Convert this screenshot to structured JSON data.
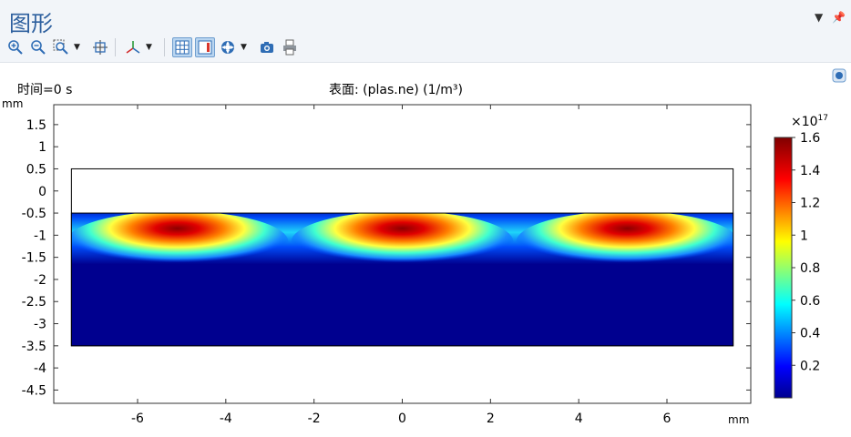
{
  "window": {
    "title": "图形"
  },
  "toolbar": {
    "items": [
      {
        "name": "zoom-in-icon"
      },
      {
        "name": "zoom-out-icon"
      },
      {
        "name": "zoom-box-icon"
      },
      {
        "name": "zoom-extents-icon"
      },
      {
        "name": "axis-orientation-icon"
      },
      {
        "name": "grid-icon"
      },
      {
        "name": "legend-icon"
      },
      {
        "name": "color-scene-icon"
      },
      {
        "name": "camera-icon"
      },
      {
        "name": "print-icon"
      }
    ]
  },
  "plot": {
    "time_label": "时间=0 s",
    "surface_label": "表面: (plas.ne) (1/m³)",
    "x_unit": "mm",
    "y_unit": "mm",
    "x_ticks": [
      "-6",
      "-4",
      "-2",
      "0",
      "2",
      "4",
      "6"
    ],
    "y_ticks": [
      "1.5",
      "1",
      "0.5",
      "0",
      "-0.5",
      "-1",
      "-1.5",
      "-2",
      "-2.5",
      "-3",
      "-3.5",
      "-4",
      "-4.5"
    ],
    "colorbar": {
      "multiplier_base": "×10",
      "multiplier_exp": "17",
      "ticks": [
        "1.6",
        "1.4",
        "1.2",
        "1",
        "0.8",
        "0.6",
        "0.4",
        "0.2"
      ]
    }
  },
  "chart_data": {
    "type": "heatmap",
    "title": "表面: (plas.ne) (1/m³)",
    "xlabel": "mm",
    "ylabel": "mm",
    "xlim": [
      -7.9,
      7.9
    ],
    "ylim": [
      -4.8,
      1.95
    ],
    "color_range": [
      0,
      1.6
    ],
    "color_multiplier": "×10^17",
    "domain": {
      "x": [
        -7.5,
        7.5
      ],
      "y": [
        -3.5,
        0.5
      ]
    },
    "plasma_region_y": [
      -3.5,
      -0.5
    ],
    "peaks": [
      {
        "x": -5.1,
        "y": -0.95,
        "value": 1.6
      },
      {
        "x": 0,
        "y": -0.95,
        "value": 1.6
      },
      {
        "x": 5.1,
        "y": -0.95,
        "value": 1.6
      }
    ],
    "colormap": "rainbow",
    "grid": false,
    "legend_position": "right"
  }
}
